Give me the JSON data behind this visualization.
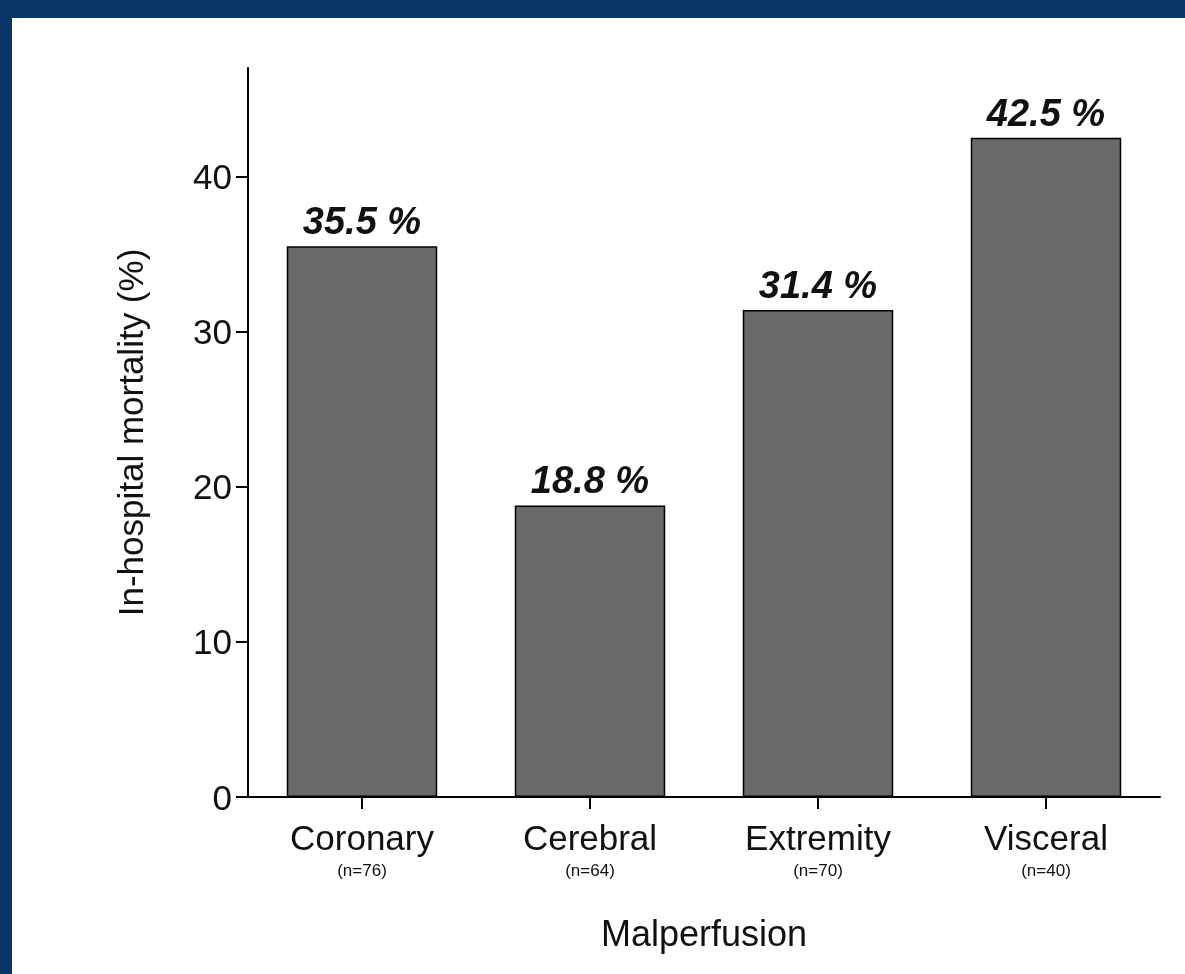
{
  "chart_data": {
    "type": "bar",
    "xlabel": "Malperfusion",
    "ylabel": "In-hospital mortality (%)",
    "categories": [
      "Coronary\n(n=76)",
      "Cerebral\n(n=64)",
      "Extremity\n(n=70)",
      "Visceral\n(n=40)"
    ],
    "values": [
      35.5,
      18.8,
      31.4,
      42.5
    ],
    "color": "#696969",
    "value_labels": [
      "35.5 %",
      "18.8 %",
      "31.4 %",
      "42.5 %"
    ],
    "ylim": [
      0,
      47
    ],
    "yticks": [
      0,
      10,
      20,
      30,
      40
    ],
    "grid": false
  }
}
